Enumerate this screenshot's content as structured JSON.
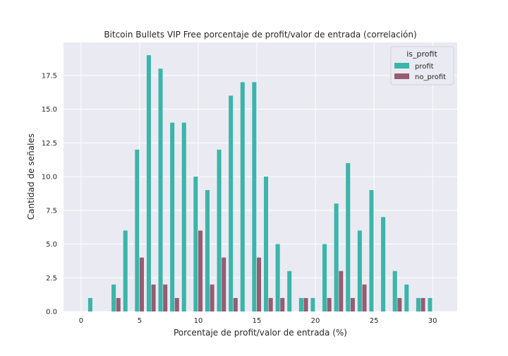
{
  "chart_data": {
    "type": "bar",
    "title": "Bitcoin Bullets VIP Free porcentaje de profit/valor de entrada (correlación)",
    "xlabel": "Porcentaje de profit/valor de entrada (%)",
    "ylabel": "Cantidad de señales",
    "xlim": [
      -1.5,
      32.1
    ],
    "ylim": [
      0,
      19.95
    ],
    "xticks": [
      0,
      5,
      10,
      15,
      20,
      25,
      30
    ],
    "yticks": [
      0.0,
      2.5,
      5.0,
      7.5,
      10.0,
      12.5,
      15.0,
      17.5
    ],
    "ytick_labels": [
      "0.0",
      "2.5",
      "5.0",
      "7.5",
      "10.0",
      "12.5",
      "15.0",
      "17.5"
    ],
    "grid": true,
    "legend": {
      "title": "is_profit",
      "placement": "top-right"
    },
    "series": [
      {
        "name": "profit",
        "color": "#3bb5aa",
        "x": [
          1,
          3,
          4,
          5,
          6,
          7,
          8,
          9,
          10,
          11,
          12,
          13,
          14,
          15,
          16,
          17,
          18,
          19,
          20,
          21,
          22,
          23,
          24,
          25,
          26,
          27,
          28,
          29,
          30
        ],
        "values": [
          1,
          2,
          6,
          12,
          19,
          18,
          14,
          14,
          10,
          9,
          12,
          16,
          17,
          17,
          10,
          5,
          3,
          1,
          1,
          5,
          8,
          11,
          6,
          9,
          7,
          3,
          2,
          1,
          1
        ]
      },
      {
        "name": "no_profit",
        "color": "#955d72",
        "x": [
          3,
          5,
          6,
          7,
          8,
          10,
          11,
          12,
          13,
          15,
          16,
          17,
          19,
          21,
          22,
          23,
          24,
          27,
          29
        ],
        "values": [
          1,
          4,
          2,
          2,
          1,
          6,
          2,
          4,
          1,
          4,
          1,
          1,
          1,
          1,
          3,
          1,
          2,
          1,
          1
        ]
      }
    ]
  }
}
